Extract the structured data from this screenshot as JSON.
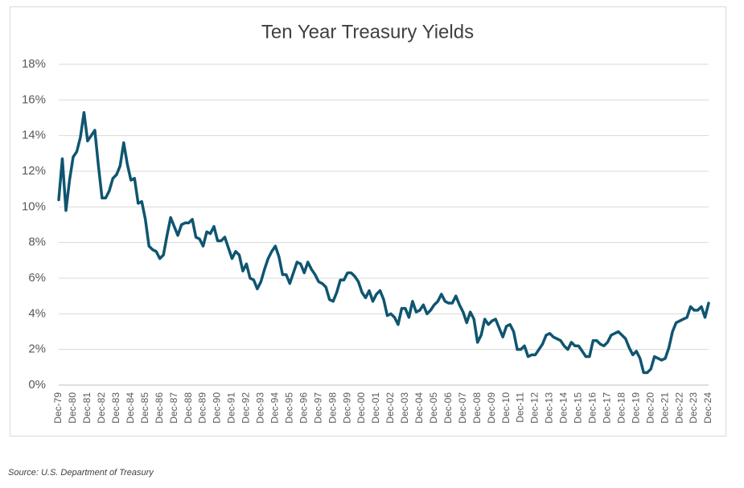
{
  "chart_data": {
    "type": "line",
    "title": "Ten Year Treasury Yields",
    "source": "Source: U.S. Department of Treasury",
    "categories": [
      "Dec-79",
      null,
      null,
      null,
      "Dec-80",
      null,
      null,
      null,
      "Dec-81",
      null,
      null,
      null,
      "Dec-82",
      null,
      null,
      null,
      "Dec-83",
      null,
      null,
      null,
      "Dec-84",
      null,
      null,
      null,
      "Dec-85",
      null,
      null,
      null,
      "Dec-86",
      null,
      null,
      null,
      "Dec-87",
      null,
      null,
      null,
      "Dec-88",
      null,
      null,
      null,
      "Dec-89",
      null,
      null,
      null,
      "Dec-90",
      null,
      null,
      null,
      "Dec-91",
      null,
      null,
      null,
      "Dec-92",
      null,
      null,
      null,
      "Dec-93",
      null,
      null,
      null,
      "Dec-94",
      null,
      null,
      null,
      "Dec-95",
      null,
      null,
      null,
      "Dec-96",
      null,
      null,
      null,
      "Dec-97",
      null,
      null,
      null,
      "Dec-98",
      null,
      null,
      null,
      "Dec-99",
      null,
      null,
      null,
      "Dec-00",
      null,
      null,
      null,
      "Dec-01",
      null,
      null,
      null,
      "Dec-02",
      null,
      null,
      null,
      "Dec-03",
      null,
      null,
      null,
      "Dec-04",
      null,
      null,
      null,
      "Dec-05",
      null,
      null,
      null,
      "Dec-06",
      null,
      null,
      null,
      "Dec-07",
      null,
      null,
      null,
      "Dec-08",
      null,
      null,
      null,
      "Dec-09",
      null,
      null,
      null,
      "Dec-10",
      null,
      null,
      null,
      "Dec-11",
      null,
      null,
      null,
      "Dec-12",
      null,
      null,
      null,
      "Dec-13",
      null,
      null,
      null,
      "Dec-14",
      null,
      null,
      null,
      "Dec-15",
      null,
      null,
      null,
      "Dec-16",
      null,
      null,
      null,
      "Dec-17",
      null,
      null,
      null,
      "Dec-18",
      null,
      null,
      null,
      "Dec-19",
      null,
      null,
      null,
      "Dec-20",
      null,
      null,
      null,
      "Dec-21",
      null,
      null,
      null,
      "Dec-22",
      null,
      null,
      null,
      "Dec-23",
      null,
      null,
      null,
      "Dec-24"
    ],
    "series": [
      {
        "color": "#0f5570",
        "values": [
          10.4,
          12.7,
          9.8,
          11.5,
          12.8,
          13.1,
          13.9,
          15.3,
          13.7,
          14.0,
          14.3,
          12.3,
          10.5,
          10.5,
          10.9,
          11.6,
          11.8,
          12.3,
          13.6,
          12.4,
          11.5,
          11.6,
          10.2,
          10.3,
          9.3,
          7.8,
          7.6,
          7.5,
          7.1,
          7.3,
          8.4,
          9.4,
          8.9,
          8.4,
          9.0,
          9.1,
          9.1,
          9.3,
          8.3,
          8.2,
          7.8,
          8.6,
          8.5,
          8.9,
          8.1,
          8.1,
          8.3,
          7.7,
          7.1,
          7.5,
          7.3,
          6.4,
          6.8,
          6.0,
          5.9,
          5.4,
          5.8,
          6.5,
          7.1,
          7.5,
          7.8,
          7.2,
          6.2,
          6.2,
          5.7,
          6.3,
          6.9,
          6.8,
          6.3,
          6.9,
          6.5,
          6.2,
          5.8,
          5.7,
          5.5,
          4.8,
          4.7,
          5.2,
          5.9,
          5.9,
          6.3,
          6.3,
          6.1,
          5.8,
          5.2,
          4.9,
          5.3,
          4.7,
          5.1,
          5.3,
          4.8,
          3.9,
          4.0,
          3.8,
          3.4,
          4.3,
          4.3,
          3.8,
          4.7,
          4.1,
          4.2,
          4.5,
          4.0,
          4.2,
          4.5,
          4.7,
          5.1,
          4.7,
          4.6,
          4.6,
          5.0,
          4.5,
          4.1,
          3.5,
          4.1,
          3.7,
          2.4,
          2.8,
          3.7,
          3.4,
          3.6,
          3.7,
          3.2,
          2.7,
          3.3,
          3.4,
          3.0,
          2.0,
          2.0,
          2.2,
          1.6,
          1.7,
          1.7,
          2.0,
          2.3,
          2.8,
          2.9,
          2.7,
          2.6,
          2.5,
          2.2,
          2.0,
          2.4,
          2.2,
          2.2,
          1.9,
          1.6,
          1.6,
          2.5,
          2.5,
          2.3,
          2.2,
          2.4,
          2.8,
          2.9,
          3.0,
          2.8,
          2.6,
          2.1,
          1.7,
          1.9,
          1.5,
          0.7,
          0.7,
          0.9,
          1.6,
          1.5,
          1.4,
          1.5,
          2.1,
          3.0,
          3.5,
          3.6,
          3.7,
          3.8,
          4.4,
          4.2,
          4.2,
          4.4,
          3.8,
          4.6
        ]
      }
    ],
    "ylim": [
      0,
      18
    ],
    "yticks": [
      {
        "value": 0,
        "label": "0%"
      },
      {
        "value": 2,
        "label": "2%"
      },
      {
        "value": 4,
        "label": "4%"
      },
      {
        "value": 6,
        "label": "6%"
      },
      {
        "value": 8,
        "label": "8%"
      },
      {
        "value": 10,
        "label": "10%"
      },
      {
        "value": 12,
        "label": "12%"
      },
      {
        "value": 14,
        "label": "14%"
      },
      {
        "value": 16,
        "label": "16%"
      },
      {
        "value": 18,
        "label": "18%"
      }
    ],
    "grid": true
  }
}
